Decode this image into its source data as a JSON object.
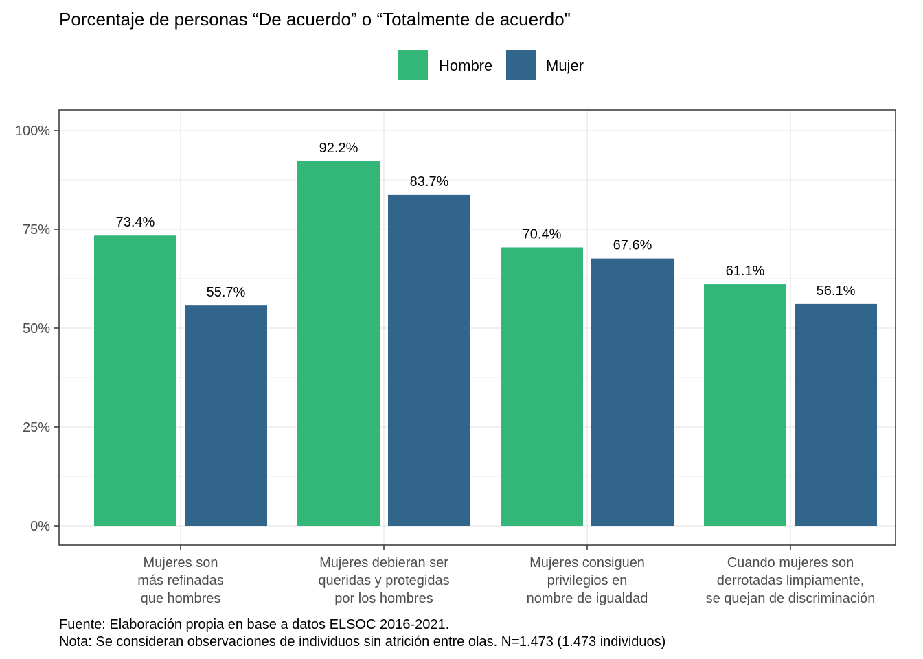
{
  "chart_data": {
    "type": "bar",
    "title": "Porcentaje de personas “De acuerdo” o “Totalmente de acuerdo\"",
    "xlabel": "",
    "ylabel": "",
    "ylim": [
      0,
      100
    ],
    "yticks": [
      "0%",
      "25%",
      "50%",
      "75%",
      "100%"
    ],
    "legend_position": "top",
    "grid": true,
    "categories": [
      [
        "Mujeres son",
        "más refinadas",
        "que hombres"
      ],
      [
        "Mujeres debieran ser",
        "queridas y protegidas",
        "por los hombres"
      ],
      [
        "Mujeres consiguen",
        "privilegios en",
        "nombre de igualdad"
      ],
      [
        "Cuando mujeres son",
        "derrotadas limpiamente,",
        "se quejan de discriminación"
      ]
    ],
    "series": [
      {
        "name": "Hombre",
        "color": "#33b779",
        "values": [
          73.4,
          92.2,
          70.4,
          61.1
        ],
        "labels": [
          "73.4%",
          "92.2%",
          "70.4%",
          "61.1%"
        ]
      },
      {
        "name": "Mujer",
        "color": "#31658c",
        "values": [
          55.7,
          83.7,
          67.6,
          56.1
        ],
        "labels": [
          "55.7%",
          "83.7%",
          "67.6%",
          "56.1%"
        ]
      }
    ],
    "caption": [
      "Fuente: Elaboración propia en base a datos ELSOC 2016-2021.",
      "Nota: Se consideran observaciones de individuos sin atrición entre olas. N=1.473 (1.473 individuos)"
    ]
  }
}
